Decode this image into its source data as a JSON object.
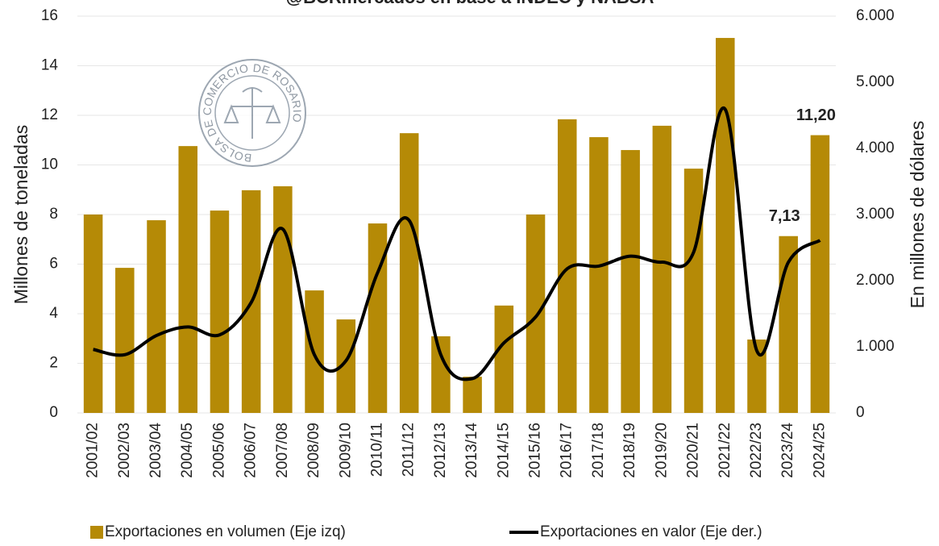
{
  "chart_data": {
    "type": "bar",
    "title": "@BCRmercados en base a INDEC y NABSA",
    "logo_text": "BOLSA DE COMERCIO DE ROSARIO",
    "y_label": "Millones de toneladas",
    "y2_label": "En millones de dólares",
    "categories": [
      "2001/02",
      "2002/03",
      "2003/04",
      "2004/05",
      "2005/06",
      "2006/07",
      "2007/08",
      "2008/09",
      "2009/10",
      "2010/11",
      "2011/12",
      "2012/13",
      "2013/14",
      "2014/15",
      "2015/16",
      "2016/17",
      "2017/18",
      "2018/19",
      "2019/20",
      "2020/21",
      "2021/22",
      "2022/23",
      "2023/24",
      "2024/25"
    ],
    "series": [
      {
        "name": "Exportaciones en volumen (Eje izq)",
        "type": "bar",
        "color": "#b58a06",
        "values": [
          8.0,
          5.85,
          7.77,
          10.76,
          8.16,
          8.98,
          9.14,
          4.94,
          3.77,
          7.64,
          11.28,
          3.09,
          1.46,
          4.33,
          8.0,
          11.84,
          11.12,
          10.6,
          11.58,
          9.85,
          15.12,
          2.96,
          7.13,
          11.2
        ],
        "value_labels": [
          null,
          null,
          null,
          null,
          null,
          null,
          null,
          null,
          null,
          null,
          null,
          null,
          null,
          null,
          null,
          null,
          null,
          null,
          null,
          null,
          null,
          null,
          "7,13",
          "11,20"
        ]
      },
      {
        "name": "Exportaciones en valor (Eje der.)",
        "type": "line",
        "axis": "y2",
        "color": "#000000",
        "values": [
          960,
          880,
          1170,
          1300,
          1180,
          1670,
          2780,
          880,
          790,
          2120,
          2910,
          880,
          520,
          1060,
          1450,
          2180,
          2220,
          2370,
          2280,
          2430,
          4590,
          940,
          2280,
          2610
        ]
      }
    ],
    "ylim": [
      0,
      16
    ],
    "yticks": [
      0,
      2,
      4,
      6,
      8,
      10,
      12,
      14,
      16
    ],
    "y2lim": [
      0,
      6000
    ],
    "y2ticks": [
      0,
      {
        "value": 1000,
        "label": "1.000"
      },
      {
        "value": 2000,
        "label": "2.000"
      },
      {
        "value": 3000,
        "label": "3.000"
      },
      {
        "value": 4000,
        "label": "4.000"
      },
      {
        "value": 5000,
        "label": "5.000"
      },
      {
        "value": 6000,
        "label": "6.000"
      }
    ],
    "grid": true,
    "legend": "bottom"
  }
}
